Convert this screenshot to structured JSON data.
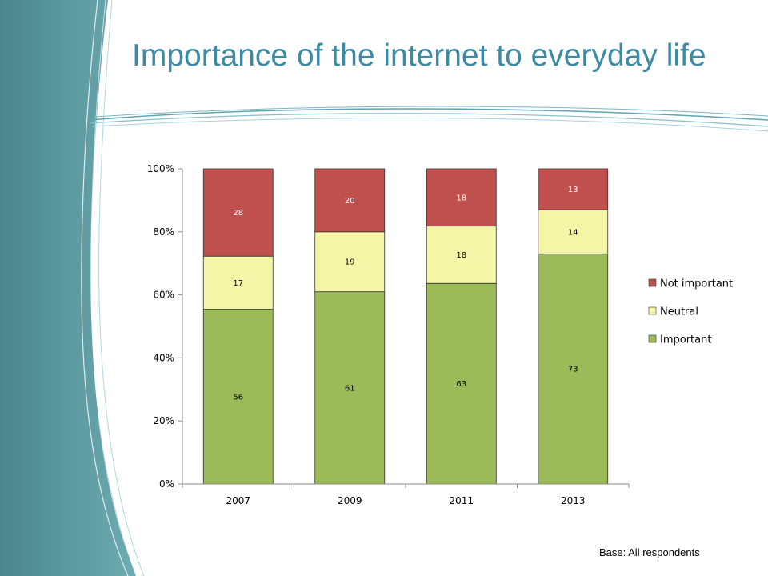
{
  "slide": {
    "title": "Importance of the internet to everyday life",
    "footnote": "Base: All respondents"
  },
  "colors": {
    "title": "#3a8ba3",
    "sidebar_dark": "#4f8c92",
    "sidebar_light": "#6aa9b0"
  },
  "chart_data": {
    "type": "bar",
    "stacked": true,
    "percent_stacked": true,
    "categories": [
      "2007",
      "2009",
      "2011",
      "2013"
    ],
    "series": [
      {
        "name": "Important",
        "values": [
          56,
          61,
          63,
          73
        ],
        "color": "#9bbb59",
        "labels": [
          "56",
          "61",
          "63",
          "73"
        ]
      },
      {
        "name": "Neutral",
        "values": [
          17,
          19,
          18,
          14
        ],
        "color": "#f5f5a8",
        "labels": [
          "17",
          "19",
          "18",
          "14"
        ]
      },
      {
        "name": "Not important",
        "values": [
          28,
          20,
          18,
          13
        ],
        "color": "#c0504d",
        "labels": [
          "28",
          "20",
          "18",
          "13"
        ]
      }
    ],
    "y_ticks": [
      "0%",
      "20%",
      "40%",
      "60%",
      "80%",
      "100%"
    ],
    "ylim": [
      0,
      100
    ],
    "grid": false,
    "legend_position": "right",
    "legend_order": [
      "Not important",
      "Neutral",
      "Important"
    ]
  }
}
